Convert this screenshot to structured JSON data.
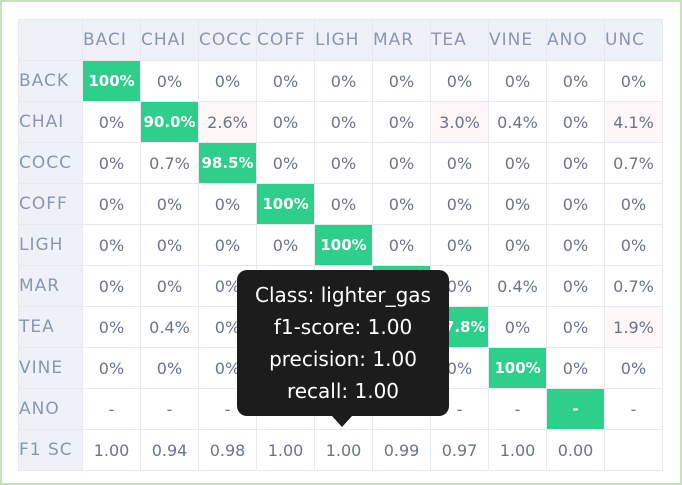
{
  "matrix": {
    "column_headers": [
      "BACI",
      "CHAI",
      "COCC",
      "COFF",
      "LIGH",
      "MAR",
      "TEA",
      "VINE",
      "ANO",
      "UNC"
    ],
    "rows": [
      {
        "label": "BACK",
        "cells": [
          "100%",
          "0%",
          "0%",
          "0%",
          "0%",
          "0%",
          "0%",
          "0%",
          "0%",
          "0%"
        ]
      },
      {
        "label": "CHAI",
        "cells": [
          "0%",
          "90.0%",
          "2.6%",
          "0%",
          "0%",
          "0%",
          "3.0%",
          "0.4%",
          "0%",
          "4.1%"
        ]
      },
      {
        "label": "COCC",
        "cells": [
          "0%",
          "0.7%",
          "98.5%",
          "0%",
          "0%",
          "0%",
          "0%",
          "0%",
          "0%",
          "0.7%"
        ]
      },
      {
        "label": "COFF",
        "cells": [
          "0%",
          "0%",
          "0%",
          "100%",
          "0%",
          "0%",
          "0%",
          "0%",
          "0%",
          "0%"
        ]
      },
      {
        "label": "LIGH",
        "cells": [
          "0%",
          "0%",
          "0%",
          "0%",
          "100%",
          "0%",
          "0%",
          "0%",
          "0%",
          "0%"
        ]
      },
      {
        "label": "MAR",
        "cells": [
          "0%",
          "0%",
          "0%",
          "",
          "",
          "",
          "0%",
          "0.4%",
          "0%",
          "0.7%"
        ]
      },
      {
        "label": "TEA",
        "cells": [
          "0%",
          "0.4%",
          "0%",
          "",
          "",
          "",
          "97.8%",
          "0%",
          "0%",
          "1.9%"
        ]
      },
      {
        "label": "VINE",
        "cells": [
          "0%",
          "0%",
          "0%",
          "",
          "",
          "",
          "0%",
          "100%",
          "0%",
          "0%"
        ]
      },
      {
        "label": "ANO",
        "cells": [
          "-",
          "-",
          "-",
          "",
          "",
          "",
          "-",
          "-",
          "-",
          "-"
        ]
      },
      {
        "label": "F1 SC",
        "cells": [
          "1.00",
          "0.94",
          "0.98",
          "1.00",
          "1.00",
          "0.99",
          "0.97",
          "1.00",
          "0.00",
          ""
        ]
      }
    ],
    "colors": {
      "diagonal_fill": "#2ecf8a",
      "weak_fill": "#fff6f7",
      "header_bg": "#eef2f8",
      "header_text": "#8a97ab",
      "frame_border": "#c3e4b7"
    }
  },
  "tooltip": {
    "class_line": "Class: lighter_gas",
    "f1_line": "f1-score: 1.00",
    "precision_line": "precision: 1.00",
    "recall_line": "recall: 1.00"
  }
}
